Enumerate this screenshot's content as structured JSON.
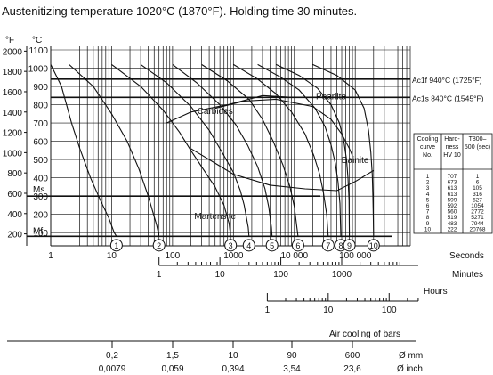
{
  "chart_data": {
    "type": "line",
    "title": "Austenitizing temperature 1020°C (1870°F). Holding time 30 minutes.",
    "y_axes": {
      "fahrenheit": {
        "unit_label": "°F",
        "ticks": [
          "2000",
          "1800",
          "1600",
          "1400",
          "1200",
          "1000",
          "800",
          "600",
          "400",
          "200"
        ]
      },
      "celsius": {
        "unit_label": "°C",
        "ticks": [
          "1100",
          "1000",
          "900",
          "800",
          "700",
          "600",
          "500",
          "400",
          "300",
          "200",
          "100"
        ],
        "ylim": [
          0,
          1100
        ]
      }
    },
    "x_axes": {
      "seconds": {
        "label": "Seconds",
        "scale": "log",
        "ticks": [
          "1",
          "10",
          "100",
          "1000",
          "10 000",
          "100 000"
        ],
        "xlim": [
          1,
          800000
        ]
      },
      "minutes": {
        "label": "Minutes",
        "ticks": [
          "1",
          "10",
          "100",
          "1000"
        ]
      },
      "hours": {
        "label": "Hours",
        "ticks": [
          "1",
          "10",
          "100"
        ]
      },
      "air_cooling": {
        "label": "Air cooling of bars",
        "mm_unit": "Ø mm",
        "inch_unit": "Ø inch",
        "mm": [
          "0,2",
          "1,5",
          "10",
          "90",
          "600"
        ],
        "inch": [
          "0,0079",
          "0,059",
          "0,394",
          "3,54",
          "23,6"
        ]
      }
    },
    "reference_lines": [
      {
        "label": "Ac1f 940°C (1725°F)",
        "temp_c": 940
      },
      {
        "label": "Ac1s 840°C (1545°F)",
        "temp_c": 840
      }
    ],
    "line_labels": {
      "ms": "Ms",
      "mf": "Mf"
    },
    "ms_temp_c": 300,
    "mf_temp_c": 80,
    "regions": [
      "Carbides",
      "Pearlite",
      "Bainite",
      "Martensite"
    ],
    "curve_markers": [
      "1",
      "2",
      "3",
      "4",
      "5",
      "6",
      "7",
      "8",
      "9",
      "10"
    ],
    "cooling_curves": [
      {
        "name": "1",
        "points": [
          [
            1,
            1020
          ],
          [
            1.5,
            900
          ],
          [
            2.2,
            700
          ],
          [
            3,
            560
          ],
          [
            4.5,
            400
          ],
          [
            6.5,
            280
          ],
          [
            9,
            180
          ],
          [
            11,
            100
          ],
          [
            12,
            80
          ]
        ]
      },
      {
        "name": "2",
        "points": [
          [
            2,
            1020
          ],
          [
            5,
            900
          ],
          [
            10,
            750
          ],
          [
            18,
            600
          ],
          [
            28,
            450
          ],
          [
            40,
            300
          ],
          [
            55,
            140
          ],
          [
            60,
            80
          ]
        ]
      },
      {
        "name": "3",
        "points": [
          [
            10,
            1020
          ],
          [
            30,
            900
          ],
          [
            70,
            770
          ],
          [
            130,
            650
          ],
          [
            200,
            550
          ],
          [
            330,
            440
          ],
          [
            500,
            350
          ],
          [
            700,
            250
          ],
          [
            850,
            150
          ],
          [
            900,
            80
          ]
        ]
      },
      {
        "name": "4",
        "points": [
          [
            30,
            1020
          ],
          [
            80,
            920
          ],
          [
            200,
            790
          ],
          [
            400,
            660
          ],
          [
            650,
            540
          ],
          [
            1000,
            430
          ],
          [
            1300,
            330
          ],
          [
            1500,
            250
          ],
          [
            1750,
            130
          ],
          [
            1800,
            80
          ]
        ]
      },
      {
        "name": "5",
        "points": [
          [
            100,
            1020
          ],
          [
            250,
            920
          ],
          [
            600,
            800
          ],
          [
            1100,
            690
          ],
          [
            1700,
            580
          ],
          [
            2500,
            460
          ],
          [
            3300,
            340
          ],
          [
            3800,
            240
          ],
          [
            4200,
            130
          ],
          [
            4300,
            80
          ]
        ]
      },
      {
        "name": "6",
        "points": [
          [
            300,
            1020
          ],
          [
            800,
            930
          ],
          [
            1800,
            830
          ],
          [
            3000,
            720
          ],
          [
            4500,
            600
          ],
          [
            6500,
            470
          ],
          [
            8500,
            350
          ],
          [
            10000,
            240
          ],
          [
            11000,
            130
          ],
          [
            11500,
            80
          ]
        ]
      },
      {
        "name": "7",
        "points": [
          [
            1000,
            1020
          ],
          [
            2500,
            940
          ],
          [
            5000,
            860
          ],
          [
            9000,
            760
          ],
          [
            15000,
            640
          ],
          [
            21000,
            520
          ],
          [
            26000,
            420
          ],
          [
            30000,
            320
          ],
          [
            34000,
            200
          ],
          [
            36000,
            80
          ]
        ]
      },
      {
        "name": "8",
        "points": [
          [
            2500,
            1020
          ],
          [
            6000,
            950
          ],
          [
            12000,
            880
          ],
          [
            22000,
            780
          ],
          [
            32000,
            680
          ],
          [
            40000,
            580
          ],
          [
            47000,
            480
          ],
          [
            52000,
            380
          ],
          [
            56000,
            260
          ],
          [
            58000,
            80
          ]
        ]
      },
      {
        "name": "9",
        "points": [
          [
            5000,
            1020
          ],
          [
            12000,
            960
          ],
          [
            24000,
            890
          ],
          [
            40000,
            800
          ],
          [
            55000,
            700
          ],
          [
            65000,
            600
          ],
          [
            72000,
            500
          ],
          [
            76000,
            400
          ],
          [
            79000,
            280
          ],
          [
            80000,
            80
          ]
        ]
      },
      {
        "name": "10",
        "points": [
          [
            20000,
            1020
          ],
          [
            50000,
            960
          ],
          [
            100000,
            880
          ],
          [
            140000,
            780
          ],
          [
            165000,
            660
          ],
          [
            180000,
            540
          ],
          [
            190000,
            420
          ],
          [
            195000,
            300
          ],
          [
            198000,
            180
          ],
          [
            200000,
            80
          ]
        ]
      }
    ],
    "table": {
      "headers": [
        "Cooling curve No.",
        "Hard-ness HV 10",
        "T800–500 (sec)"
      ],
      "rows": [
        [
          "1",
          "707",
          "1"
        ],
        [
          "2",
          "673",
          "6"
        ],
        [
          "3",
          "613",
          "105"
        ],
        [
          "4",
          "613",
          "316"
        ],
        [
          "5",
          "599",
          "527"
        ],
        [
          "6",
          "592",
          "1054"
        ],
        [
          "7",
          "560",
          "2772"
        ],
        [
          "8",
          "519",
          "5271"
        ],
        [
          "9",
          "483",
          "7944"
        ],
        [
          "10",
          "222",
          "20768"
        ]
      ]
    },
    "grid": true
  }
}
